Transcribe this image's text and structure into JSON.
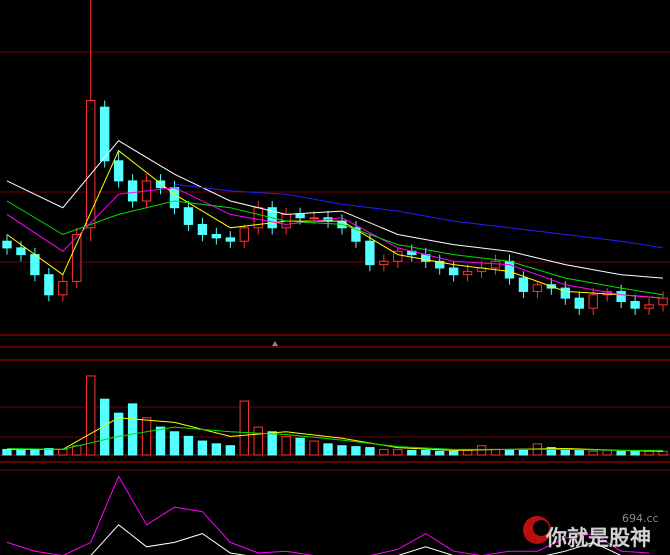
{
  "chart_data": [
    {
      "type": "candlestick",
      "x": [
        0,
        1,
        2,
        3,
        4,
        5,
        6,
        7,
        8,
        9,
        10,
        11,
        12,
        13,
        14,
        15,
        16,
        17,
        18,
        19,
        20,
        21,
        22,
        23,
        24,
        25,
        26,
        27,
        28,
        29,
        30,
        31,
        32,
        33,
        34,
        35,
        36,
        37,
        38,
        39,
        40,
        41,
        42,
        43,
        44,
        45,
        46,
        47
      ],
      "open": [
        28,
        26,
        24,
        18,
        12,
        16,
        32,
        68,
        52,
        46,
        40,
        46,
        44,
        38,
        33,
        30,
        29,
        28,
        32,
        38,
        32,
        36,
        35,
        35,
        34,
        32,
        28,
        21,
        22,
        25,
        24,
        22,
        20,
        18,
        19,
        20,
        22,
        17,
        13,
        15,
        14,
        11,
        8,
        12,
        13,
        10,
        8,
        9
      ],
      "high": [
        30,
        28,
        26,
        20,
        18,
        32,
        100,
        70,
        55,
        48,
        48,
        48,
        46,
        40,
        35,
        32,
        31,
        33,
        40,
        40,
        38,
        38,
        37,
        37,
        36,
        34,
        30,
        24,
        26,
        27,
        26,
        24,
        22,
        21,
        22,
        24,
        24,
        19,
        16,
        17,
        16,
        13,
        14,
        14,
        15,
        12,
        11,
        13
      ],
      "low": [
        24,
        22,
        16,
        10,
        10,
        14,
        28,
        50,
        44,
        38,
        38,
        42,
        36,
        31,
        28,
        27,
        26,
        26,
        30,
        30,
        30,
        33,
        33,
        32,
        30,
        26,
        19,
        19,
        20,
        22,
        20,
        18,
        16,
        16,
        17,
        18,
        15,
        11,
        11,
        12,
        9,
        6,
        6,
        10,
        8,
        6,
        6,
        7
      ],
      "close": [
        26,
        24,
        18,
        12,
        16,
        30,
        70,
        52,
        46,
        40,
        46,
        44,
        38,
        33,
        30,
        29,
        28,
        32,
        38,
        32,
        36,
        35,
        35,
        34,
        32,
        28,
        21,
        22,
        25,
        24,
        22,
        20,
        18,
        19,
        20,
        22,
        17,
        13,
        15,
        14,
        11,
        8,
        12,
        13,
        10,
        8,
        9,
        11
      ],
      "up_color": "#ff3232",
      "down_color": "#54ffff",
      "xlim": [
        -0.5,
        47.5
      ],
      "ylim": [
        0,
        100
      ],
      "series": [
        {
          "color": "#ffffff",
          "x": [
            0,
            4,
            8,
            12,
            16,
            20,
            24,
            28,
            32,
            36,
            40,
            44,
            47
          ],
          "values": [
            46,
            38,
            58,
            48,
            40,
            36,
            37,
            30,
            27,
            25,
            21,
            18,
            17
          ]
        },
        {
          "color": "#ffff00",
          "x": [
            0,
            4,
            8,
            12,
            16,
            20,
            24,
            28,
            32,
            36,
            40,
            44,
            47
          ],
          "values": [
            30,
            18,
            55,
            42,
            32,
            34,
            34,
            24,
            21,
            19,
            13,
            12,
            11
          ]
        },
        {
          "color": "#ff00ff",
          "x": [
            0,
            4,
            8,
            12,
            16,
            20,
            24,
            28,
            32,
            36,
            40,
            44,
            47
          ],
          "values": [
            36,
            25,
            42,
            44,
            36,
            33,
            35,
            26,
            22,
            21,
            15,
            12,
            11
          ]
        },
        {
          "color": "#00e000",
          "x": [
            0,
            4,
            8,
            12,
            16,
            20,
            24,
            28,
            32,
            36,
            40,
            44,
            47
          ],
          "values": [
            40,
            30,
            36,
            40,
            38,
            34,
            33,
            27,
            24,
            22,
            17,
            14,
            12
          ]
        },
        {
          "color": "#2020ff",
          "x": [
            0,
            4,
            8,
            12,
            16,
            20,
            24,
            28,
            32,
            36,
            40,
            44,
            47
          ],
          "values": [
            null,
            null,
            null,
            45,
            43,
            42,
            39,
            37,
            34,
            32,
            30,
            28,
            26
          ]
        }
      ]
    },
    {
      "type": "bar",
      "x": [
        0,
        1,
        2,
        3,
        4,
        5,
        6,
        7,
        8,
        9,
        10,
        11,
        12,
        13,
        14,
        15,
        16,
        17,
        18,
        19,
        20,
        21,
        22,
        23,
        24,
        25,
        26,
        27,
        28,
        29,
        30,
        31,
        32,
        33,
        34,
        35,
        36,
        37,
        38,
        39,
        40,
        41,
        42,
        43,
        44,
        45,
        46,
        47
      ],
      "values": [
        6,
        5,
        6,
        7,
        6,
        10,
        85,
        60,
        45,
        55,
        40,
        30,
        25,
        20,
        15,
        12,
        10,
        58,
        30,
        25,
        20,
        18,
        15,
        12,
        10,
        9,
        8,
        6,
        6,
        5,
        5,
        4,
        4,
        5,
        10,
        6,
        5,
        5,
        12,
        8,
        5,
        5,
        4,
        5,
        4,
        4,
        4,
        4
      ],
      "xlim": [
        -0.5,
        47.5
      ],
      "ylim": [
        0,
        100
      ],
      "series": [
        {
          "color": "#ffff00",
          "x": [
            0,
            4,
            8,
            12,
            16,
            20,
            24,
            28,
            32,
            36,
            40,
            44,
            47
          ],
          "values": [
            6,
            6,
            40,
            35,
            20,
            25,
            18,
            8,
            5,
            6,
            7,
            5,
            4
          ]
        },
        {
          "color": "#00e000",
          "x": [
            0,
            4,
            8,
            12,
            16,
            20,
            24,
            28,
            32,
            36,
            40,
            44,
            47
          ],
          "values": [
            7,
            6,
            20,
            30,
            25,
            22,
            16,
            9,
            6,
            6,
            6,
            5,
            5
          ]
        }
      ]
    },
    {
      "type": "line",
      "xlim": [
        -0.5,
        47.5
      ],
      "ylim": [
        0,
        100
      ],
      "series": [
        {
          "color": "#ff00ff",
          "x": [
            0,
            2,
            4,
            6,
            8,
            10,
            12,
            14,
            16,
            18,
            20,
            22,
            24,
            26,
            28,
            30,
            32,
            34,
            36,
            38,
            40,
            42,
            44,
            46
          ],
          "values": [
            20,
            10,
            5,
            20,
            95,
            40,
            60,
            55,
            20,
            8,
            10,
            5,
            5,
            5,
            12,
            30,
            10,
            5,
            10,
            10,
            25,
            30,
            10,
            8
          ]
        },
        {
          "color": "#ffffff",
          "x": [
            0,
            2,
            4,
            6,
            8,
            10,
            12,
            14,
            16,
            18,
            20,
            22,
            24,
            26,
            28,
            30,
            32,
            34,
            36,
            38,
            40,
            42,
            44,
            46
          ],
          "values": [
            5,
            5,
            3,
            5,
            40,
            15,
            20,
            30,
            8,
            3,
            5,
            3,
            3,
            3,
            5,
            15,
            5,
            3,
            5,
            3,
            10,
            20,
            5,
            3
          ]
        }
      ]
    }
  ],
  "watermark": {
    "name": "你就是股神",
    "site": "694.cc"
  }
}
